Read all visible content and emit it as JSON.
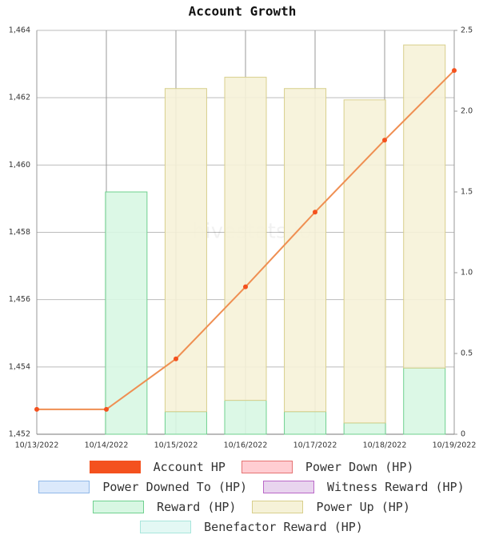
{
  "chart_data": {
    "type": "combo",
    "title": "Account Growth",
    "watermark": "hivestats.io",
    "categories": [
      "10/13/2022",
      "10/14/2022",
      "10/15/2022",
      "10/16/2022",
      "10/17/2022",
      "10/18/2022",
      "10/19/2022"
    ],
    "ylim": [
      1452,
      1464
    ],
    "yticks": [
      {
        "value": 1452,
        "label": "1,452"
      },
      {
        "value": 1454,
        "label": "1,454"
      },
      {
        "value": 1456,
        "label": "1,456"
      },
      {
        "value": 1458,
        "label": "1,458"
      },
      {
        "value": 1460,
        "label": "1,460"
      },
      {
        "value": 1462,
        "label": "1,462"
      },
      {
        "value": 1464,
        "label": "1,464"
      }
    ],
    "y2lim": [
      0,
      2.5
    ],
    "y2ticks": [
      0,
      0.5,
      {
        "value": 1,
        "label": "1.0"
      },
      1.5,
      {
        "value": 2,
        "label": "2.0"
      },
      2.5
    ],
    "grid": true,
    "series": [
      {
        "name": "Account HP",
        "type": "line",
        "axis": "y",
        "color": "#f4511e",
        "line_color": "#ef8f52",
        "values": [
          1452.74,
          1452.74,
          1454.24,
          1456.38,
          1458.6,
          1460.74,
          1462.81
        ]
      },
      {
        "name": "Power Down (HP)",
        "type": "bar",
        "axis": "y2",
        "color": "#ffcdd2",
        "border": "#e57373",
        "values": [
          0,
          0,
          0,
          0,
          0,
          0,
          0
        ]
      },
      {
        "name": "Power Downed To (HP)",
        "type": "bar",
        "axis": "y2",
        "color": "#dbe9fb",
        "border": "#90b8e8",
        "values": [
          0,
          0,
          0,
          0,
          0,
          0,
          0
        ]
      },
      {
        "name": "Witness Reward (HP)",
        "type": "bar",
        "axis": "y2",
        "color": "#e8d4ee",
        "border": "#ba68c8",
        "values": [
          0,
          0,
          0,
          0,
          0,
          0,
          0
        ]
      },
      {
        "name": "Reward (HP)",
        "type": "bar",
        "axis": "y2",
        "color": "#d8f7e3",
        "border": "#6fd08f",
        "values": [
          0,
          1.5,
          0.14,
          0.21,
          0.14,
          0.07,
          0.41
        ]
      },
      {
        "name": "Power Up (HP)",
        "type": "bar",
        "axis": "y2",
        "color": "#f6f2d8",
        "border": "#d8cf8c",
        "values": [
          0,
          0,
          2.0,
          2.0,
          2.0,
          2.0,
          2.0
        ]
      },
      {
        "name": "Benefactor Reward (HP)",
        "type": "bar",
        "axis": "y2",
        "color": "#e3f8f4",
        "border": "#a8e6dc",
        "values": [
          0,
          0,
          0,
          0,
          0,
          0,
          0
        ]
      }
    ]
  }
}
